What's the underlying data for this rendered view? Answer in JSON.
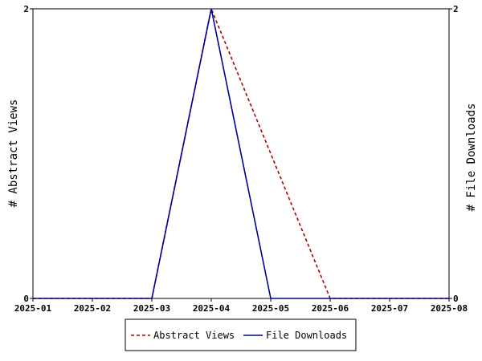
{
  "chart_data": {
    "type": "line",
    "x": [
      "2025-01",
      "2025-02",
      "2025-03",
      "2025-04",
      "2025-05",
      "2025-06",
      "2025-07",
      "2025-08"
    ],
    "series": [
      {
        "name": "Abstract Views",
        "axis": "left",
        "color": "#b00000",
        "dash": "dashed",
        "values": [
          0,
          0,
          0,
          2,
          1,
          0,
          0,
          0
        ]
      },
      {
        "name": "File Downloads",
        "axis": "right",
        "color": "#0000a0",
        "dash": "solid",
        "values": [
          0,
          0,
          0,
          2,
          0,
          0,
          0,
          0
        ]
      }
    ],
    "ylabel": "# Abstract Views",
    "y2label": "# File Downloads",
    "ylim": [
      0,
      2
    ],
    "y2lim": [
      0,
      2
    ],
    "yticks": [
      "0",
      "2"
    ],
    "y2ticks": [
      "0",
      "2"
    ],
    "legend_position": "bottom",
    "grid": false
  }
}
